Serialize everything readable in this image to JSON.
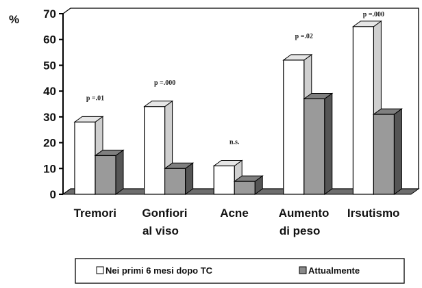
{
  "chart_data": {
    "type": "bar",
    "ylabel": "%",
    "ylim": [
      0,
      70
    ],
    "yticks": [
      "0",
      "10",
      "20",
      "30",
      "40",
      "50",
      "60",
      "70"
    ],
    "categories": [
      [
        "Tremori"
      ],
      [
        "Gonfiori",
        "al viso"
      ],
      [
        "Acne"
      ],
      [
        "Aumento",
        "di peso"
      ],
      [
        "Irsutismo"
      ]
    ],
    "series": [
      {
        "name": "Nei primi 6 mesi dopo TC",
        "values": [
          28,
          34,
          11,
          52,
          65
        ],
        "color": "#ffffff"
      },
      {
        "name": "Attualmente",
        "values": [
          15,
          10,
          5,
          37,
          31
        ],
        "color": "#9a9a9a"
      }
    ],
    "annotations": [
      "p =.01",
      "p =.000",
      "n.s.",
      "p =.02",
      "p =.000"
    ],
    "legend_position": "bottom",
    "grid": false
  }
}
